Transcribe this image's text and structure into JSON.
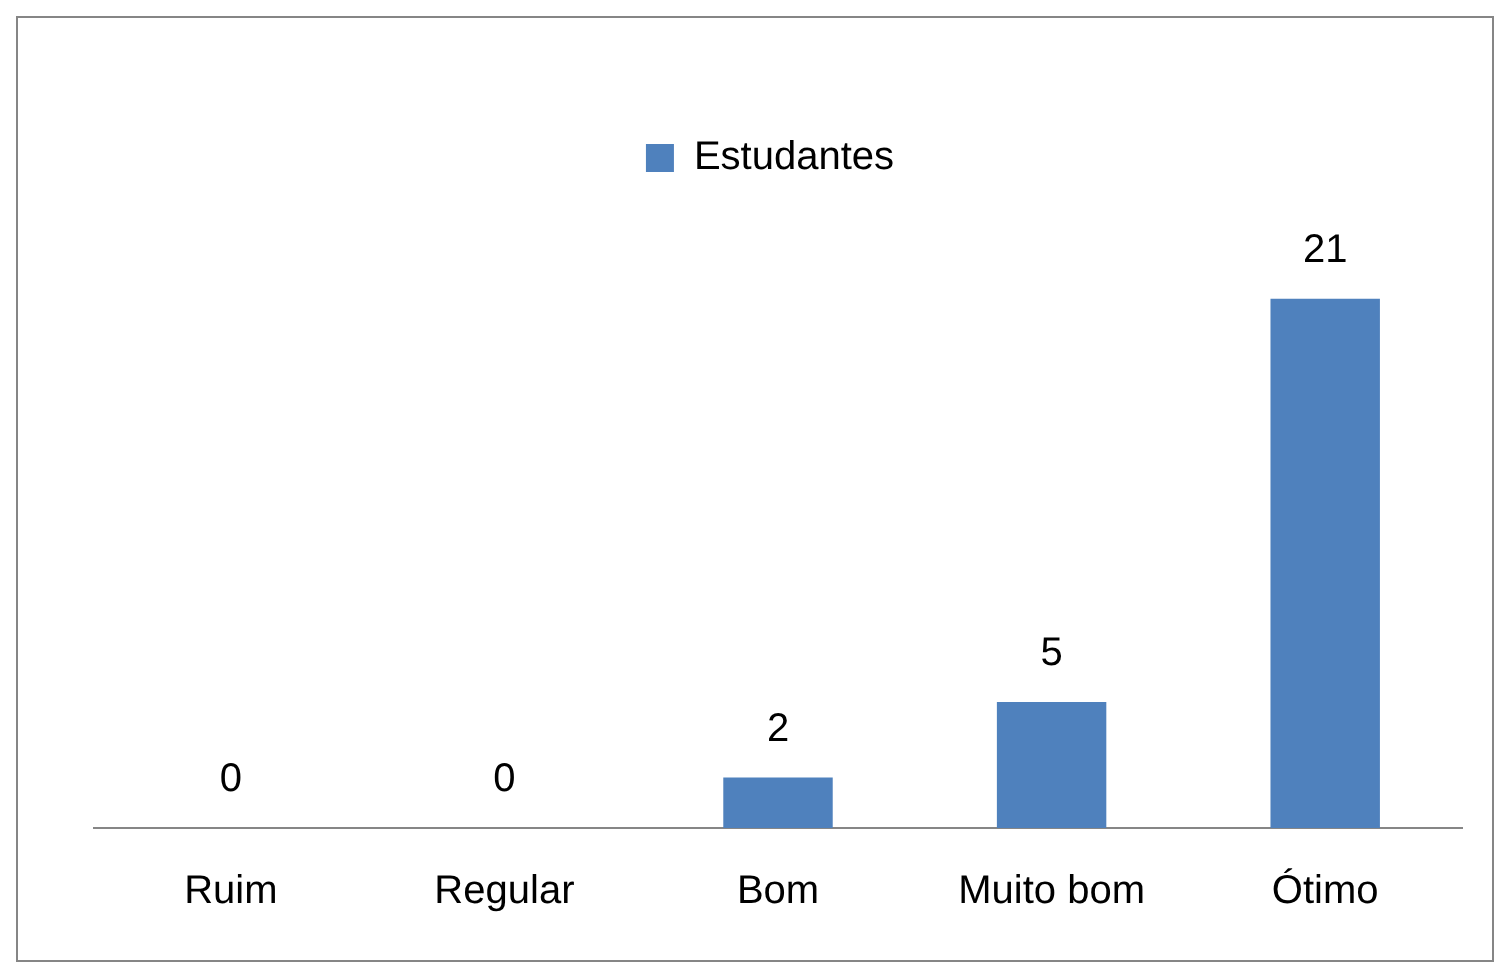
{
  "chart_data": {
    "type": "bar",
    "categories": [
      "Ruim",
      "Regular",
      "Bom",
      "Muito bom",
      "Ótimo"
    ],
    "series": [
      {
        "name": "Estudantes",
        "color": "#4f81bd",
        "values": [
          0,
          0,
          2,
          5,
          21
        ]
      }
    ],
    "relative": false,
    "data_labels": true,
    "legend": "top"
  }
}
